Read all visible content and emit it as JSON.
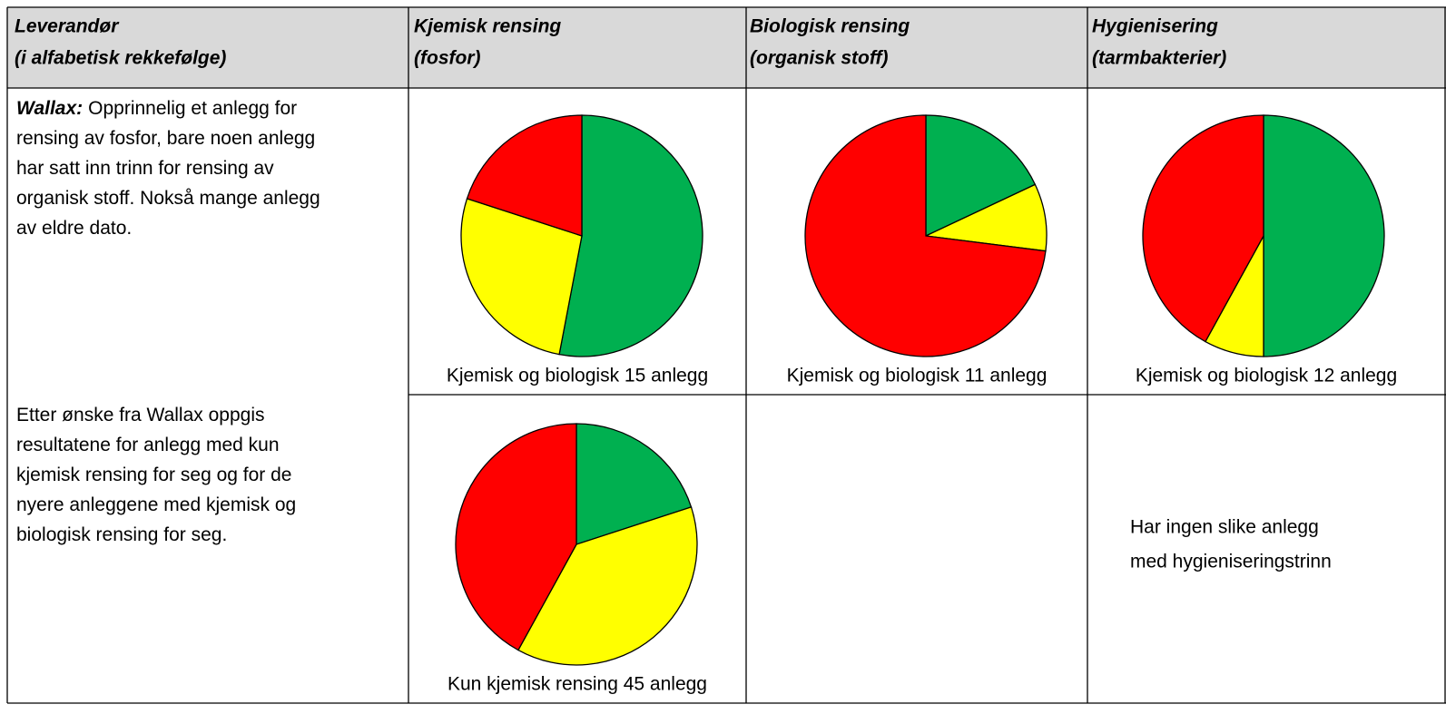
{
  "header": {
    "columns": [
      [
        "Leverandør",
        "(i alfabetisk rekkefølge)"
      ],
      [
        "Kjemisk rensing",
        "(fosfor)"
      ],
      [
        "Biologisk rensing",
        "(organisk stoff)"
      ],
      [
        "Hygienisering",
        "(tarmbakterier)"
      ]
    ]
  },
  "rows": [
    {
      "lead": "Wallax:",
      "lines": [
        "Opprinnelig et anlegg for",
        "rensing av fosfor, bare noen anlegg",
        "har satt inn trinn for rensing av",
        "organisk stoff. Nokså mange anlegg",
        "av eldre dato."
      ],
      "pies": [
        {
          "caption": "Kjemisk og biologisk 15 anlegg",
          "values": [
            53,
            27,
            20
          ]
        },
        {
          "caption": "Kjemisk og biologisk 11 anlegg",
          "values": [
            18,
            9,
            73
          ]
        },
        {
          "caption": "Kjemisk og biologisk 12 anlegg",
          "values": [
            50,
            8,
            42
          ]
        }
      ]
    },
    {
      "lines": [
        "Etter ønske fra Wallax oppgis",
        "resultatene for anlegg med kun",
        "kjemisk rensing for seg og for de",
        "nyere anleggene med kjemisk og",
        "biologisk rensing for seg."
      ],
      "pies": [
        {
          "caption": "Kun kjemisk rensing 45 anlegg",
          "values": [
            20,
            38,
            42
          ]
        }
      ],
      "note": [
        "Har ingen slike anlegg",
        "med hygieniseringstrinn"
      ]
    }
  ],
  "colors": [
    "#00b050",
    "#ffff00",
    "#ff0000"
  ]
}
